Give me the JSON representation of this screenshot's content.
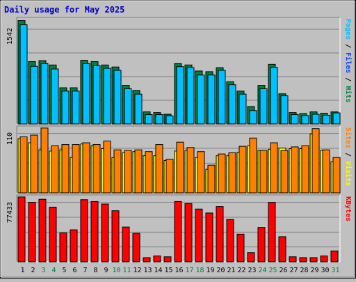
{
  "chart_data": {
    "type": "bar",
    "title": "Daily usage for May 2025",
    "categories": [
      "1",
      "2",
      "3",
      "4",
      "5",
      "6",
      "7",
      "8",
      "9",
      "10",
      "11",
      "12",
      "13",
      "14",
      "15",
      "16",
      "17",
      "18",
      "19",
      "20",
      "21",
      "22",
      "23",
      "24",
      "25",
      "26",
      "27",
      "28",
      "29",
      "30",
      "31"
    ],
    "weekend_days": [
      "3",
      "4",
      "10",
      "11",
      "17",
      "18",
      "24",
      "25",
      "31"
    ],
    "panels": [
      {
        "name": "top",
        "ymax_label": "1542",
        "ymax": 1542,
        "right_label_parts": [
          {
            "text": "Pages",
            "color": "#00c0ff"
          },
          {
            "text": " / ",
            "color": "#000000"
          },
          {
            "text": "Files",
            "color": "#0040ff"
          },
          {
            "text": " / ",
            "color": "#000000"
          },
          {
            "text": "Hits",
            "color": "#008040"
          }
        ],
        "series": [
          {
            "name": "Hits",
            "color": "#008040",
            "values": [
              1542,
              930,
              945,
              880,
              540,
              540,
              950,
              930,
              880,
              850,
              575,
              500,
              180,
              170,
              145,
              900,
              880,
              790,
              780,
              840,
              630,
              490,
              260,
              575,
              890,
              450,
              170,
              155,
              180,
              160,
              180
            ]
          },
          {
            "name": "Pages",
            "color": "#00c0ff",
            "values": [
              1480,
              860,
              900,
              820,
              490,
              490,
              900,
              870,
              830,
              800,
              525,
              445,
              140,
              140,
              120,
              855,
              840,
              730,
              730,
              800,
              585,
              445,
              200,
              525,
              845,
              420,
              140,
              125,
              145,
              130,
              165
            ]
          }
        ]
      },
      {
        "name": "middle",
        "ymax_label": "110",
        "ymax": 110,
        "right_label_parts": [
          {
            "text": "Sites",
            "color": "#ff8000"
          },
          {
            "text": " / ",
            "color": "#000000"
          },
          {
            "text": "Visits",
            "color": "#ffff00"
          }
        ],
        "series": [
          {
            "name": "Visits",
            "color": "#ffff00",
            "values": [
              92,
              85,
              73,
              71,
              73,
              60,
              83,
              80,
              75,
              60,
              68,
              70,
              63,
              63,
              55,
              71,
              72,
              60,
              40,
              63,
              63,
              69,
              80,
              72,
              74,
              76,
              75,
              75,
              100,
              72,
              53
            ]
          },
          {
            "name": "Sites",
            "color": "#ff8000",
            "values": [
              95,
              98,
              110,
              80,
              82,
              82,
              85,
              82,
              88,
              73,
              72,
              73,
              70,
              82,
              57,
              86,
              77,
              70,
              47,
              66,
              68,
              79,
              93,
              72,
              85,
              72,
              78,
              80,
              109,
              73,
              60
            ]
          }
        ]
      },
      {
        "name": "bottom",
        "ymax_label": "77433",
        "ymax": 77433,
        "right_label_parts": [
          {
            "text": "KBytes",
            "color": "#ff0000"
          }
        ],
        "series": [
          {
            "name": "KBytes",
            "color": "#ff0000",
            "values": [
              77433,
              71000,
              74700,
              65300,
              34500,
              38200,
              74200,
              72000,
              69000,
              61000,
              41500,
              34000,
              5000,
              7000,
              6000,
              72000,
              69500,
              63000,
              58300,
              66000,
              50500,
              33000,
              11000,
              41000,
              71000,
              30000,
              6000,
              5000,
              5000,
              7000,
              13000
            ]
          }
        ]
      }
    ]
  }
}
